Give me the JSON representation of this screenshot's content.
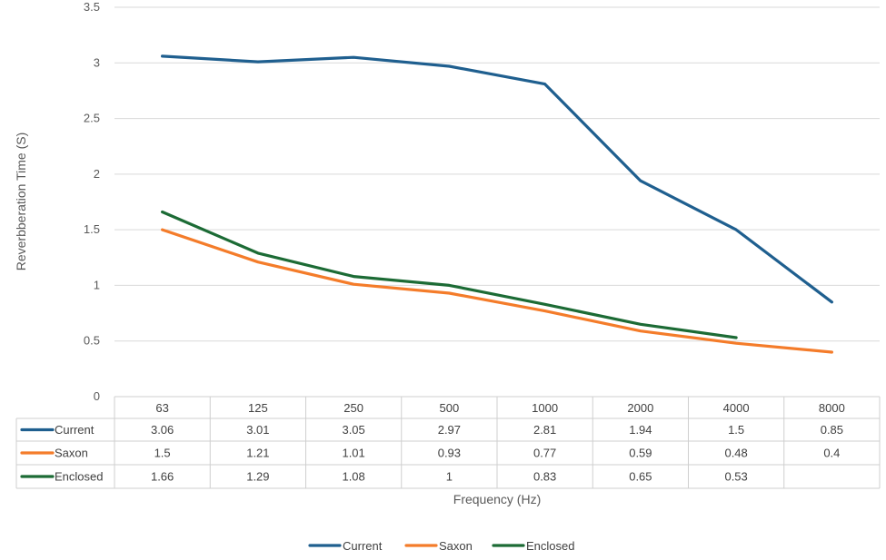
{
  "chart_data": {
    "type": "line",
    "title": "",
    "xlabel": "Frequency (Hz)",
    "ylabel": "Reverbberation Time (S)",
    "ylim": [
      0,
      3.5
    ],
    "yticks": [
      "0",
      "0.5",
      "1",
      "1.5",
      "2",
      "2.5",
      "3",
      "3.5"
    ],
    "grid": true,
    "legend_position": "bottom",
    "categories": [
      "63",
      "125",
      "250",
      "500",
      "1000",
      "2000",
      "4000",
      "8000"
    ],
    "series": [
      {
        "name": "Current",
        "color": "#1f5f8f",
        "values": [
          3.06,
          3.01,
          3.05,
          2.97,
          2.81,
          1.94,
          1.5,
          0.85
        ]
      },
      {
        "name": "Saxon",
        "color": "#f47c2a",
        "values": [
          1.5,
          1.21,
          1.01,
          0.93,
          0.77,
          0.59,
          0.48,
          0.4
        ]
      },
      {
        "name": "Enclosed",
        "color": "#1c6b35",
        "values": [
          1.66,
          1.29,
          1.08,
          1,
          0.83,
          0.65,
          0.53,
          null
        ]
      }
    ],
    "table_cells": [
      [
        "3.06",
        "3.01",
        "3.05",
        "2.97",
        "2.81",
        "1.94",
        "1.5",
        "0.85"
      ],
      [
        "1.5",
        "1.21",
        "1.01",
        "0.93",
        "0.77",
        "0.59",
        "0.48",
        "0.4"
      ],
      [
        "1.66",
        "1.29",
        "1.08",
        "1",
        "0.83",
        "0.65",
        "0.53",
        ""
      ]
    ]
  }
}
